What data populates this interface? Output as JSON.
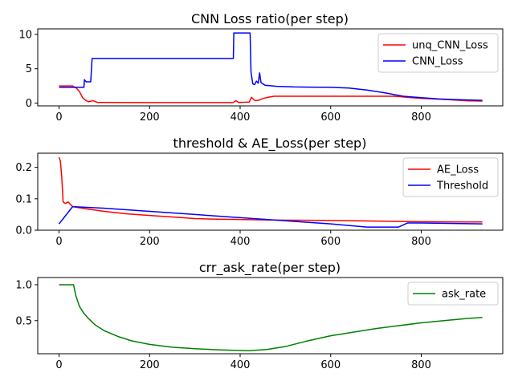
{
  "chart_data": [
    {
      "type": "line",
      "title": "CNN Loss ratio(per step)",
      "xlim": [
        -47,
        980
      ],
      "ylim": [
        -0.4,
        10.8
      ],
      "xticks": [
        0,
        200,
        400,
        600,
        800
      ],
      "yticks": [
        0,
        5,
        10
      ],
      "legend": "top-right",
      "grid": false,
      "series": [
        {
          "name": "unq_CNN_Loss",
          "color": "#ff0000",
          "points": [
            [
              0,
              2.5
            ],
            [
              30,
              2.5
            ],
            [
              38,
              2.2
            ],
            [
              45,
              1.7
            ],
            [
              52,
              0.8
            ],
            [
              58,
              0.45
            ],
            [
              65,
              0.2
            ],
            [
              75,
              0.35
            ],
            [
              85,
              0.1
            ],
            [
              200,
              0.08
            ],
            [
              385,
              0.08
            ],
            [
              390,
              0.35
            ],
            [
              397,
              0.1
            ],
            [
              420,
              0.15
            ],
            [
              425,
              0.85
            ],
            [
              432,
              0.4
            ],
            [
              440,
              0.4
            ],
            [
              452,
              0.7
            ],
            [
              462,
              0.85
            ],
            [
              475,
              1.0
            ],
            [
              650,
              1.0
            ],
            [
              740,
              1.0
            ],
            [
              800,
              0.7
            ],
            [
              860,
              0.5
            ],
            [
              900,
              0.35
            ],
            [
              935,
              0.3
            ]
          ]
        },
        {
          "name": "CNN_Loss",
          "color": "#0000ff",
          "points": [
            [
              0,
              2.3
            ],
            [
              55,
              2.3
            ],
            [
              56,
              3.4
            ],
            [
              60,
              3.1
            ],
            [
              70,
              3.1
            ],
            [
              73,
              6.5
            ],
            [
              385,
              6.5
            ],
            [
              386,
              10.2
            ],
            [
              422,
              10.2
            ],
            [
              424,
              4.5
            ],
            [
              428,
              2.8
            ],
            [
              432,
              2.7
            ],
            [
              436,
              3.2
            ],
            [
              440,
              2.9
            ],
            [
              443,
              4.4
            ],
            [
              446,
              3.0
            ],
            [
              450,
              2.8
            ],
            [
              455,
              2.6
            ],
            [
              480,
              2.45
            ],
            [
              520,
              2.35
            ],
            [
              600,
              2.3
            ],
            [
              640,
              2.2
            ],
            [
              680,
              1.9
            ],
            [
              720,
              1.5
            ],
            [
              760,
              1.0
            ],
            [
              800,
              0.8
            ],
            [
              840,
              0.6
            ],
            [
              880,
              0.5
            ],
            [
              935,
              0.4
            ]
          ]
        }
      ]
    },
    {
      "type": "line",
      "title": "threshold & AE_Loss(per step)",
      "xlim": [
        -47,
        980
      ],
      "ylim": [
        0,
        0.245
      ],
      "xticks": [
        0,
        200,
        400,
        600,
        800
      ],
      "yticks": [
        0.0,
        0.1,
        0.2
      ],
      "ytick_labels": [
        "0.0",
        "0.1",
        "0.2"
      ],
      "legend": "top-right",
      "grid": false,
      "series": [
        {
          "name": "AE_Loss",
          "color": "#ff0000",
          "points": [
            [
              0,
              0.232
            ],
            [
              3,
              0.22
            ],
            [
              6,
              0.17
            ],
            [
              9,
              0.09
            ],
            [
              14,
              0.085
            ],
            [
              20,
              0.09
            ],
            [
              30,
              0.075
            ],
            [
              60,
              0.068
            ],
            [
              100,
              0.06
            ],
            [
              150,
              0.052
            ],
            [
              200,
              0.047
            ],
            [
              250,
              0.042
            ],
            [
              300,
              0.037
            ],
            [
              350,
              0.035
            ],
            [
              400,
              0.034
            ],
            [
              450,
              0.033
            ],
            [
              500,
              0.032
            ],
            [
              600,
              0.031
            ],
            [
              700,
              0.029
            ],
            [
              800,
              0.027
            ],
            [
              900,
              0.026
            ],
            [
              935,
              0.026
            ]
          ]
        },
        {
          "name": "Threshold",
          "color": "#0000ff",
          "points": [
            [
              0,
              0.02
            ],
            [
              30,
              0.075
            ],
            [
              100,
              0.07
            ],
            [
              200,
              0.06
            ],
            [
              300,
              0.05
            ],
            [
              420,
              0.038
            ],
            [
              500,
              0.03
            ],
            [
              600,
              0.02
            ],
            [
              680,
              0.01
            ],
            [
              750,
              0.01
            ],
            [
              770,
              0.023
            ],
            [
              800,
              0.023
            ],
            [
              935,
              0.02
            ]
          ]
        }
      ]
    },
    {
      "type": "line",
      "title": "crr_ask_rate(per step)",
      "xlim": [
        -47,
        980
      ],
      "ylim": [
        0.04,
        1.1
      ],
      "xticks": [
        0,
        200,
        400,
        600,
        800
      ],
      "yticks": [
        0.5,
        1.0
      ],
      "ytick_labels": [
        "0.5",
        "1.0"
      ],
      "legend": "top-right",
      "grid": false,
      "series": [
        {
          "name": "ask_rate",
          "color": "#008000",
          "points": [
            [
              0,
              1.0
            ],
            [
              32,
              1.0
            ],
            [
              37,
              0.85
            ],
            [
              45,
              0.7
            ],
            [
              55,
              0.6
            ],
            [
              65,
              0.53
            ],
            [
              80,
              0.44
            ],
            [
              100,
              0.36
            ],
            [
              130,
              0.28
            ],
            [
              160,
              0.22
            ],
            [
              200,
              0.17
            ],
            [
              250,
              0.13
            ],
            [
              300,
              0.11
            ],
            [
              350,
              0.095
            ],
            [
              400,
              0.085
            ],
            [
              420,
              0.082
            ],
            [
              440,
              0.09
            ],
            [
              460,
              0.1
            ],
            [
              500,
              0.14
            ],
            [
              550,
              0.22
            ],
            [
              600,
              0.29
            ],
            [
              650,
              0.34
            ],
            [
              700,
              0.39
            ],
            [
              750,
              0.43
            ],
            [
              800,
              0.47
            ],
            [
              850,
              0.5
            ],
            [
              900,
              0.53
            ],
            [
              935,
              0.545
            ]
          ]
        }
      ]
    }
  ]
}
